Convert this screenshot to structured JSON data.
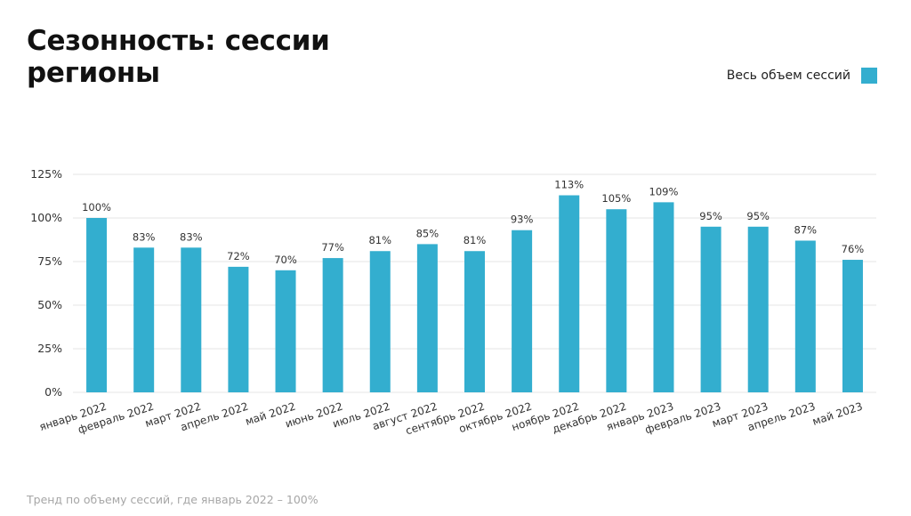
{
  "page": {
    "title_lines": [
      "Сезонность: сессии",
      "регионы"
    ],
    "footnote": "Тренд по объему сессий, где январь 2022 – 100%"
  },
  "colors": {
    "bar": "#33aecf",
    "grid": "#e6e6e6",
    "tick": "#333333"
  },
  "chart_data": {
    "type": "bar",
    "title": "Сезонность: сессии регионы",
    "categories": [
      "январь 2022",
      "февраль 2022",
      "март 2022",
      "апрель 2022",
      "май 2022",
      "июнь 2022",
      "июль 2022",
      "август 2022",
      "сентябрь 2022",
      "октябрь 2022",
      "ноябрь 2022",
      "декабрь 2022",
      "январь 2023",
      "февраль 2023",
      "март 2023",
      "апрель 2023",
      "май 2023"
    ],
    "series": [
      {
        "name": "Весь объем сессий",
        "values": [
          100,
          83,
          83,
          72,
          70,
          77,
          81,
          85,
          81,
          93,
          113,
          105,
          109,
          95,
          95,
          87,
          76
        ]
      }
    ],
    "data_labels": [
      "100%",
      "83%",
      "83%",
      "72%",
      "70%",
      "77%",
      "81%",
      "85%",
      "81%",
      "93%",
      "113%",
      "105%",
      "109%",
      "95%",
      "95%",
      "87%",
      "76%"
    ],
    "y_ticks": [
      0,
      25,
      50,
      75,
      100,
      125
    ],
    "y_tick_labels": [
      "0%",
      "25%",
      "50%",
      "75%",
      "100%",
      "125%"
    ],
    "ylim": [
      0,
      125
    ],
    "grid": true,
    "legend_position": "top-right"
  }
}
